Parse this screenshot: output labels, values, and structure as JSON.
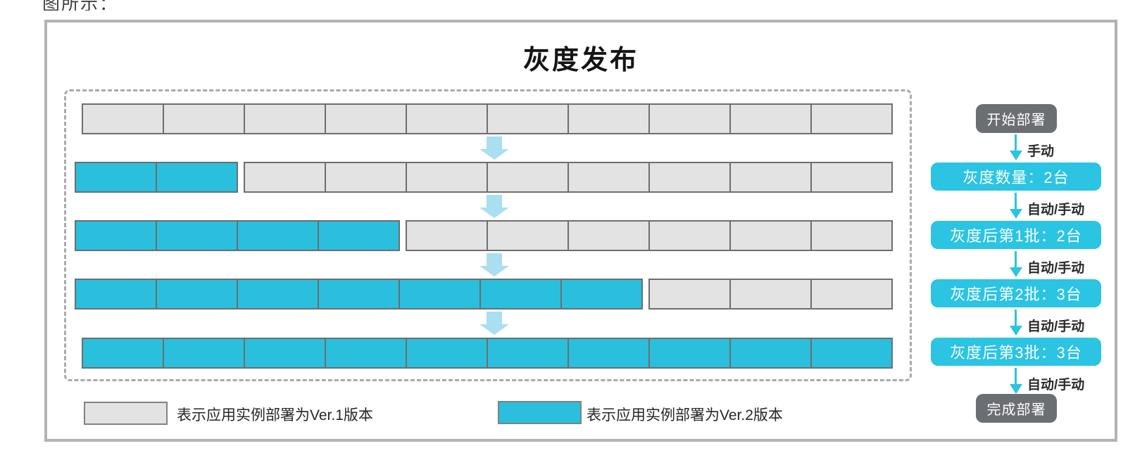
{
  "page": {
    "intro_fragment": "图所示："
  },
  "diagram": {
    "title": "灰度发布",
    "rows": [
      {
        "ver2_count": 0,
        "ver1_count": 10
      },
      {
        "ver2_count": 2,
        "ver1_count": 8
      },
      {
        "ver2_count": 4,
        "ver1_count": 6
      },
      {
        "ver2_count": 7,
        "ver1_count": 3
      },
      {
        "ver2_count": 10,
        "ver1_count": 0
      }
    ],
    "legend": [
      {
        "label": "表示应用实例部署为Ver.1版本"
      },
      {
        "label": "表示应用实例部署为Ver.2版本"
      }
    ],
    "flow": {
      "start_label": "开始部署",
      "steps": [
        {
          "arrow_label": "手动",
          "label": "灰度数量：2台"
        },
        {
          "arrow_label": "自动/手动",
          "label": "灰度后第1批：2台"
        },
        {
          "arrow_label": "自动/手动",
          "label": "灰度后第2批：3台"
        },
        {
          "arrow_label": "自动/手动",
          "label": "灰度后第3批：3台"
        }
      ],
      "end_arrow_label": "自动/手动",
      "end_label": "完成部署"
    },
    "colors": {
      "ver1_fill": "#e3e3e4",
      "ver1_border": "#6d6e70",
      "ver2_fill": "#2abfdc",
      "flow_accent": "#2bc4e3",
      "terminal_fill": "#6b6e73",
      "row_arrow": "#a9dff0"
    }
  }
}
